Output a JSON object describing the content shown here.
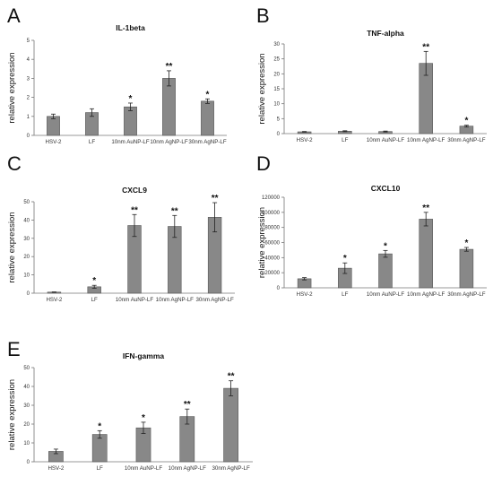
{
  "panels": [
    {
      "letter": "A",
      "chart_data": {
        "type": "bar",
        "title": "IL-1beta",
        "ylabel": "relative expression",
        "categories": [
          "HSV-2",
          "LF",
          "10nm AuNP-LF",
          "10nm AgNP-LF",
          "30nm AgNP-LF"
        ],
        "values": [
          1.0,
          1.2,
          1.5,
          3.0,
          1.8
        ],
        "errors": [
          0.12,
          0.2,
          0.2,
          0.4,
          0.12
        ],
        "significance": [
          "",
          "",
          "*",
          "**",
          "*"
        ],
        "ylim": [
          0,
          5
        ],
        "yticks": [
          "0",
          "1",
          "2",
          "3",
          "4",
          "5"
        ],
        "grid": false,
        "color": "#888888"
      }
    },
    {
      "letter": "B",
      "chart_data": {
        "type": "bar",
        "title": "TNF-alpha",
        "ylabel": "relative expression",
        "categories": [
          "HSV-2",
          "LF",
          "10nm AuNP-LF",
          "10nm AgNP-LF",
          "30nm AgNP-LF"
        ],
        "values": [
          0.6,
          0.8,
          0.7,
          23.5,
          2.5
        ],
        "errors": [
          0.1,
          0.15,
          0.15,
          4.0,
          0.3
        ],
        "significance": [
          "",
          "",
          "",
          "**",
          "*"
        ],
        "ylim": [
          0,
          30
        ],
        "yticks": [
          "0",
          "5",
          "10",
          "15",
          "20",
          "25",
          "30"
        ],
        "grid": false,
        "color": "#888888"
      }
    },
    {
      "letter": "C",
      "chart_data": {
        "type": "bar",
        "title": "CXCL9",
        "ylabel": "relative expression",
        "categories": [
          "HSV-2",
          "LF",
          "10nm AuNP-LF",
          "10nm AgNP-LF",
          "30nm AgNP-LF"
        ],
        "values": [
          0.6,
          3.5,
          37,
          36.5,
          41.5
        ],
        "errors": [
          0.1,
          0.8,
          6,
          6,
          8
        ],
        "significance": [
          "",
          "*",
          "**",
          "**",
          "**"
        ],
        "ylim": [
          0,
          50
        ],
        "yticks": [
          "0",
          "10",
          "20",
          "30",
          "40",
          "50"
        ],
        "grid": false,
        "color": "#888888"
      }
    },
    {
      "letter": "D",
      "chart_data": {
        "type": "bar",
        "title": "CXCL10",
        "ylabel": "relative expression",
        "categories": [
          "HSV-2",
          "LF",
          "10nm AuNP-LF",
          "10nm AgNP-LF",
          "30nm AgNP-LF"
        ],
        "values": [
          12000,
          26000,
          45000,
          91000,
          51000
        ],
        "errors": [
          1500,
          7000,
          4500,
          9000,
          2500
        ],
        "significance": [
          "",
          "*",
          "*",
          "**",
          "*"
        ],
        "ylim": [
          0,
          120000
        ],
        "yticks": [
          "0",
          "20000",
          "40000",
          "60000",
          "80000",
          "100000",
          "120000"
        ],
        "grid": false,
        "color": "#888888"
      }
    },
    {
      "letter": "E",
      "chart_data": {
        "type": "bar",
        "title": "IFN-gamma",
        "ylabel": "relative expression",
        "categories": [
          "HSV-2",
          "LF",
          "10nm AuNP-LF",
          "10nm AgNP-LF",
          "30nm AgNP-LF"
        ],
        "values": [
          5.5,
          14.5,
          18,
          24,
          39
        ],
        "errors": [
          1.2,
          2,
          3,
          4,
          4
        ],
        "significance": [
          "",
          "*",
          "*",
          "**",
          "**"
        ],
        "ylim": [
          0,
          50
        ],
        "yticks": [
          "0",
          "10",
          "20",
          "30",
          "40",
          "50"
        ],
        "grid": false,
        "color": "#888888"
      }
    }
  ]
}
